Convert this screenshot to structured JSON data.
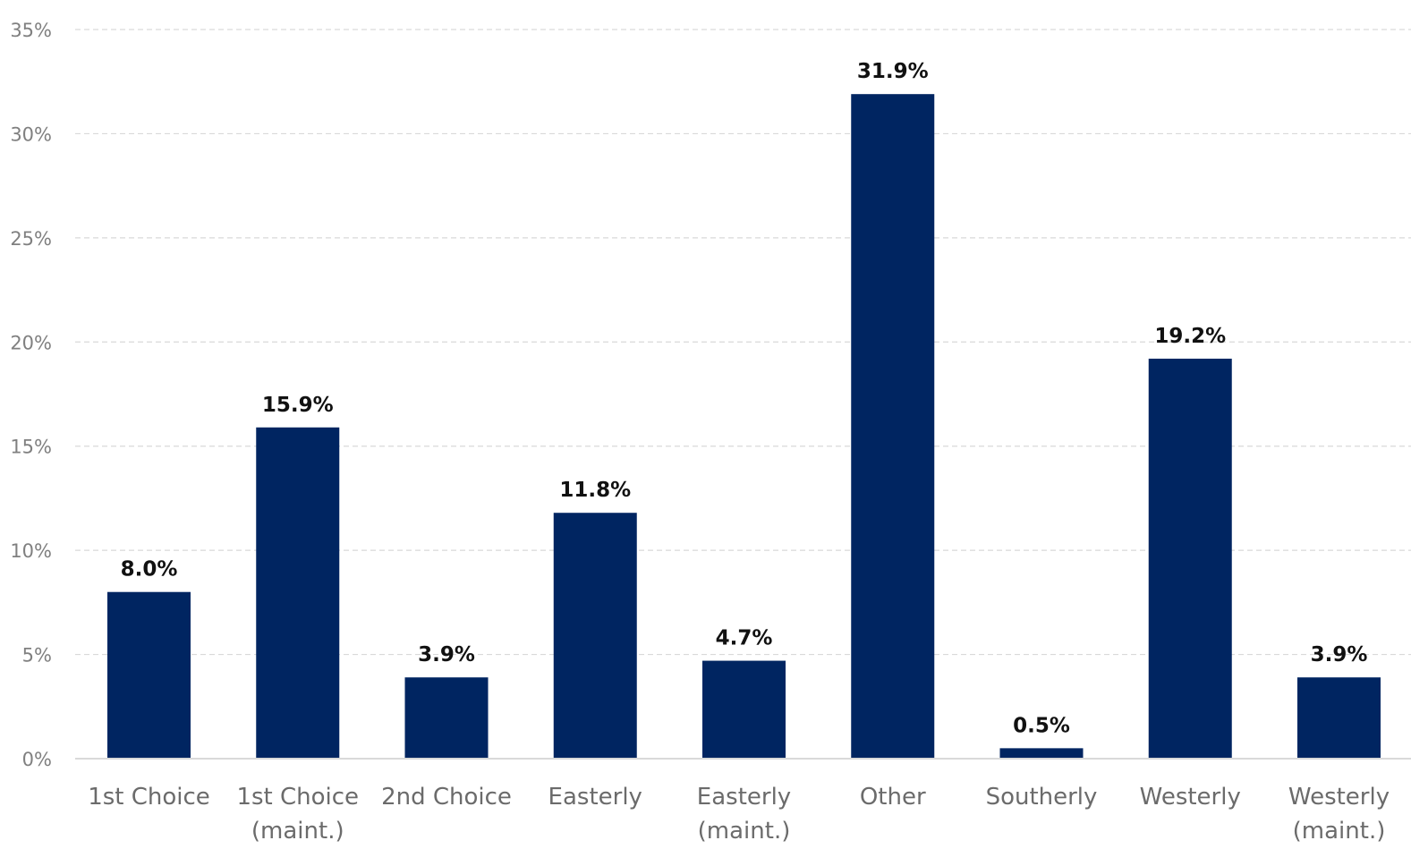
{
  "chart_data": {
    "type": "bar",
    "categories": [
      [
        "1st Choice"
      ],
      [
        "1st Choice",
        "(maint.)"
      ],
      [
        "2nd Choice"
      ],
      [
        "Easterly"
      ],
      [
        "Easterly",
        "(maint.)"
      ],
      [
        "Other"
      ],
      [
        "Southerly"
      ],
      [
        "Westerly"
      ],
      [
        "Westerly",
        "(maint.)"
      ]
    ],
    "values": [
      8.0,
      15.9,
      3.9,
      11.8,
      4.7,
      31.9,
      0.5,
      19.2,
      3.9
    ],
    "data_labels": [
      "8.0%",
      "15.9%",
      "3.9%",
      "11.8%",
      "4.7%",
      "31.9%",
      "0.5%",
      "19.2%",
      "3.9%"
    ],
    "yticks": [
      0,
      5,
      10,
      15,
      20,
      25,
      30,
      35
    ],
    "ytick_labels": [
      "0%",
      "5%",
      "10%",
      "15%",
      "20%",
      "25%",
      "30%",
      "35%"
    ],
    "ylim": [
      0,
      35
    ],
    "grid": true,
    "legend": "none",
    "title": "",
    "xlabel": "",
    "ylabel": "",
    "bar_color": "#002561"
  }
}
